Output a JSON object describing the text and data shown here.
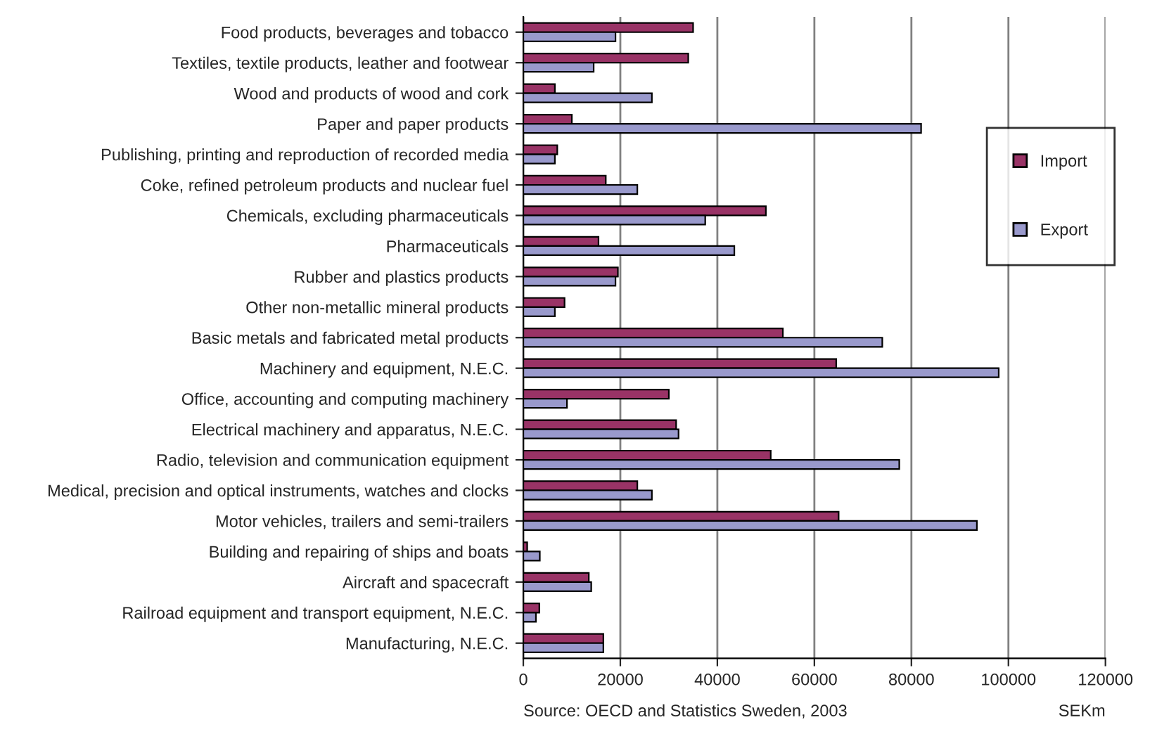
{
  "chart_data": {
    "type": "bar",
    "orientation": "horizontal",
    "xlabel": "SEKm",
    "categories": [
      "Food products, beverages and tobacco",
      "Textiles, textile products, leather and footwear",
      "Wood and products of wood and cork",
      "Paper and paper products",
      "Publishing, printing and reproduction of recorded media",
      "Coke, refined petroleum products and nuclear fuel",
      "Chemicals, excluding pharmaceuticals",
      "Pharmaceuticals",
      "Rubber and plastics products",
      "Other non-metallic mineral products",
      "Basic metals and fabricated metal products",
      "Machinery and equipment, N.E.C.",
      "Office, accounting and computing machinery",
      "Electrical machinery and apparatus, N.E.C.",
      "Radio, television and communication equipment",
      "Medical, precision and optical instruments, watches and clocks",
      "Motor vehicles, trailers and semi-trailers",
      "Building and repairing of ships and boats",
      "Aircraft and spacecraft",
      "Railroad equipment and transport equipment, N.E.C.",
      "Manufacturing, N.E.C."
    ],
    "series": [
      {
        "name": "Import",
        "color": "#993366",
        "values": [
          35000,
          34000,
          6500,
          10000,
          7000,
          17000,
          50000,
          15500,
          19500,
          8500,
          53500,
          64500,
          30000,
          31500,
          51000,
          23500,
          65000,
          800,
          13500,
          3300,
          16500
        ]
      },
      {
        "name": "Export",
        "color": "#9999cc",
        "values": [
          19000,
          14500,
          26500,
          82000,
          6500,
          23500,
          37500,
          43500,
          19000,
          6500,
          74000,
          98000,
          9000,
          32000,
          77500,
          26500,
          93500,
          3400,
          14000,
          2600,
          16500
        ]
      }
    ],
    "xlim": [
      0,
      120000
    ],
    "xticks": [
      0,
      20000,
      40000,
      60000,
      80000,
      100000,
      120000
    ],
    "grid": "x",
    "legend": "right",
    "annotations": [
      "Source: OECD and Statistics Sweden, 2003"
    ]
  }
}
